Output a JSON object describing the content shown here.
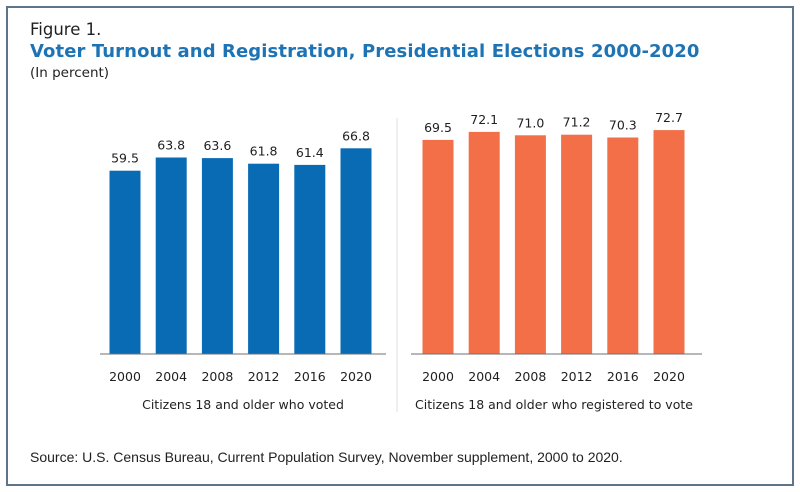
{
  "figure": {
    "label": "Figure 1.",
    "title": "Voter Turnout and Registration, Presidential Elections 2000-2020",
    "subtitle": "(In percent)",
    "source": "Source: U.S. Census Bureau, Current Population Survey, November supplement, 2000 to 2020."
  },
  "colors": {
    "voted": "#0a6bb5",
    "registered": "#f26f47",
    "title": "#1e73b5",
    "frame": "#5e7489"
  },
  "chart_data": {
    "type": "bar",
    "title": "Voter Turnout and Registration, Presidential Elections 2000-2020",
    "subtitle": "(In percent)",
    "xlabel": "",
    "ylabel": "",
    "ylim": [
      0,
      80
    ],
    "grid": false,
    "legend": "none",
    "panels": [
      {
        "name": "Citizens 18 and older who voted",
        "categories": [
          "2000",
          "2004",
          "2008",
          "2012",
          "2016",
          "2020"
        ],
        "values": [
          59.5,
          63.8,
          63.6,
          61.8,
          61.4,
          66.8
        ],
        "labels": [
          "59.5",
          "63.8",
          "63.6",
          "61.8",
          "61.4",
          "66.8"
        ],
        "color": "#0a6bb5"
      },
      {
        "name": "Citizens 18 and older who registered to vote",
        "categories": [
          "2000",
          "2004",
          "2008",
          "2012",
          "2016",
          "2020"
        ],
        "values": [
          69.5,
          72.1,
          71.0,
          71.2,
          70.3,
          72.7
        ],
        "labels": [
          "69.5",
          "72.1",
          "71.0",
          "71.2",
          "70.3",
          "72.7"
        ],
        "color": "#f26f47"
      }
    ]
  }
}
